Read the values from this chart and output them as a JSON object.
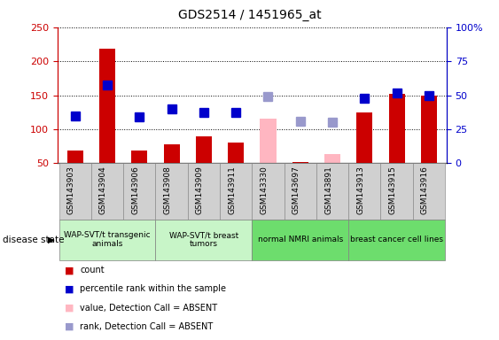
{
  "title": "GDS2514 / 1451965_at",
  "samples": [
    "GSM143903",
    "GSM143904",
    "GSM143906",
    "GSM143908",
    "GSM143909",
    "GSM143911",
    "GSM143330",
    "GSM143697",
    "GSM143891",
    "GSM143913",
    "GSM143915",
    "GSM143916"
  ],
  "count_values": [
    68,
    218,
    68,
    78,
    90,
    80,
    null,
    52,
    null,
    124,
    152,
    150
  ],
  "count_absent_values": [
    null,
    null,
    null,
    null,
    null,
    null,
    115,
    null,
    63,
    null,
    null,
    null
  ],
  "rank_values_left": [
    120,
    165,
    118,
    130,
    124,
    125,
    null,
    null,
    null,
    145,
    153,
    150
  ],
  "rank_absent_values_left": [
    null,
    null,
    null,
    null,
    null,
    null,
    148,
    112,
    110,
    null,
    null,
    null
  ],
  "ylim_left": [
    50,
    250
  ],
  "ylim_right": [
    0,
    100
  ],
  "yticks_left": [
    50,
    100,
    150,
    200,
    250
  ],
  "yticks_right": [
    0,
    25,
    50,
    75,
    100
  ],
  "ytick_labels_left": [
    "50",
    "100",
    "150",
    "200",
    "250"
  ],
  "ytick_labels_right": [
    "0",
    "25",
    "50",
    "75",
    "100%"
  ],
  "bar_color_present": "#cc0000",
  "bar_color_absent": "#ffb6c1",
  "rank_color_present": "#0000cc",
  "rank_color_absent": "#9999cc",
  "bar_width": 0.5,
  "marker_size": 7,
  "group_spans": [
    {
      "start": 0,
      "end": 2,
      "label": "WAP-SVT/t transgenic\nanimals",
      "color": "#c8f5c8"
    },
    {
      "start": 3,
      "end": 5,
      "label": "WAP-SVT/t breast\ntumors",
      "color": "#c8f5c8"
    },
    {
      "start": 6,
      "end": 8,
      "label": "normal NMRI animals",
      "color": "#6ddd6d"
    },
    {
      "start": 9,
      "end": 11,
      "label": "breast cancer cell lines",
      "color": "#6ddd6d"
    }
  ],
  "xlim": [
    -0.55,
    11.55
  ],
  "sample_row_color": "#d0d0d0",
  "disease_state_label": "disease state"
}
